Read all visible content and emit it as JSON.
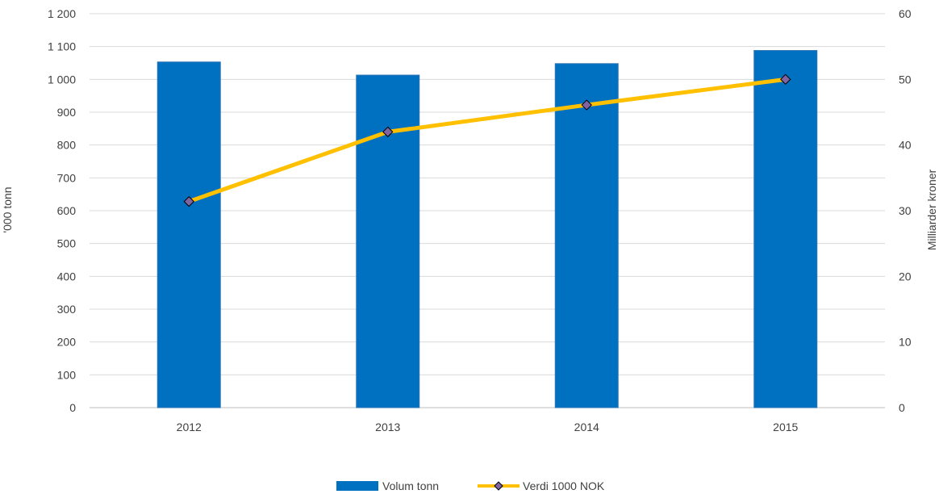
{
  "chart_data": {
    "type": "bar",
    "categories": [
      "2012",
      "2013",
      "2014",
      "2015"
    ],
    "series": [
      {
        "name": "Volum tonn",
        "type": "bar",
        "axis": "left",
        "values": [
          1053,
          1013,
          1048,
          1088
        ]
      },
      {
        "name": "Verdi 1000 NOK",
        "type": "line",
        "axis": "right",
        "values": [
          31.4,
          42.0,
          46.1,
          50.0
        ]
      }
    ],
    "ylabel_left": "'000 tonn",
    "ylabel_right": "Milliarder kroner",
    "ylim_left": [
      0,
      1200
    ],
    "ylim_right": [
      0,
      60
    ],
    "yticks_left": [
      "0",
      "100",
      "200",
      "300",
      "400",
      "500",
      "600",
      "700",
      "800",
      "900",
      "1 000",
      "1 100",
      "1 200"
    ],
    "yticks_right": [
      "0",
      "10",
      "20",
      "30",
      "40",
      "50",
      "60"
    ],
    "grid": true,
    "legend_position": "bottom",
    "colors": {
      "bar": "#0070C0",
      "line": "#FFC000",
      "marker": "#8064A2"
    }
  }
}
